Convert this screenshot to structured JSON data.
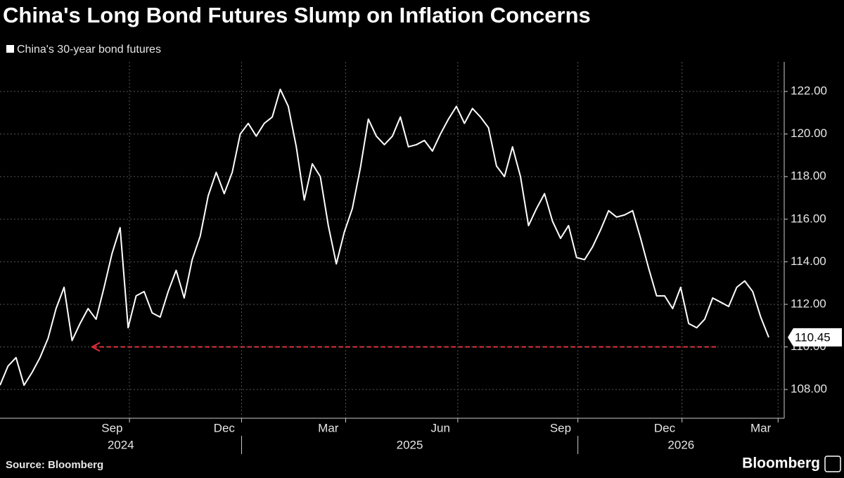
{
  "chart_data": {
    "type": "line",
    "title": "China's Long Bond Futures Slump on Inflation Concerns",
    "source": "Source: Bloomberg",
    "brand": "Bloomberg",
    "categories": [
      null,
      null,
      null,
      null,
      null,
      null,
      null,
      null,
      null,
      null,
      null,
      null,
      null,
      null,
      "Sep",
      null,
      null,
      null,
      null,
      null,
      null,
      null,
      null,
      null,
      null,
      null,
      null,
      null,
      "Dec",
      null,
      null,
      null,
      null,
      null,
      null,
      null,
      null,
      null,
      null,
      null,
      null,
      "Mar",
      null,
      null,
      null,
      null,
      null,
      null,
      null,
      null,
      null,
      null,
      null,
      null,
      null,
      "Jun",
      null,
      null,
      null,
      null,
      null,
      null,
      null,
      null,
      null,
      null,
      null,
      null,
      null,
      null,
      "Sep",
      null,
      null,
      null,
      null,
      null,
      null,
      null,
      null,
      null,
      null,
      null,
      null,
      "Dec",
      null,
      null,
      null,
      null,
      null,
      null,
      null,
      null,
      null,
      null,
      null,
      "Mar",
      null
    ],
    "x_group_labels": [
      "2024",
      "2025",
      "2026"
    ],
    "series": [
      {
        "name": "China's 30-year bond futures",
        "color": "#ffffff",
        "values": [
          108.2,
          109.1,
          109.5,
          108.2,
          108.8,
          109.5,
          110.4,
          111.8,
          112.8,
          110.3,
          111.1,
          111.8,
          111.3,
          112.8,
          114.4,
          115.6,
          110.9,
          112.4,
          112.6,
          111.6,
          111.4,
          112.6,
          113.6,
          112.3,
          114.1,
          115.2,
          117.1,
          118.2,
          117.2,
          118.2,
          120.0,
          120.5,
          119.9,
          120.5,
          120.8,
          122.1,
          121.3,
          119.4,
          116.9,
          118.6,
          118.0,
          115.7,
          113.9,
          115.4,
          116.5,
          118.4,
          120.7,
          119.9,
          119.5,
          119.9,
          120.8,
          119.4,
          119.5,
          119.7,
          119.2,
          120.0,
          120.7,
          121.3,
          120.5,
          121.2,
          120.8,
          120.3,
          118.5,
          118.0,
          119.4,
          118.0,
          115.7,
          116.5,
          117.2,
          115.9,
          115.1,
          115.7,
          114.2,
          114.1,
          114.7,
          115.5,
          116.4,
          116.1,
          116.2,
          116.4,
          115.1,
          113.7,
          112.4,
          112.4,
          111.8,
          112.8,
          111.1,
          110.9,
          111.3,
          112.3,
          112.1,
          111.9,
          112.8,
          113.1,
          112.6,
          111.4,
          110.45
        ]
      }
    ],
    "reference_line": {
      "value": 110.0,
      "color": "#e0303a"
    },
    "ylim": [
      106.65,
      123.39
    ],
    "yticks": [
      {
        "value": 108,
        "label": "108.00"
      },
      {
        "value": 110,
        "label": "110.00"
      },
      {
        "value": 112,
        "label": "112.00"
      },
      {
        "value": 114,
        "label": "114.00"
      },
      {
        "value": 116,
        "label": "116.00"
      },
      {
        "value": 118,
        "label": "118.00"
      },
      {
        "value": 120,
        "label": "120.00"
      },
      {
        "value": 122,
        "label": "122.00"
      }
    ],
    "grid": true
  }
}
